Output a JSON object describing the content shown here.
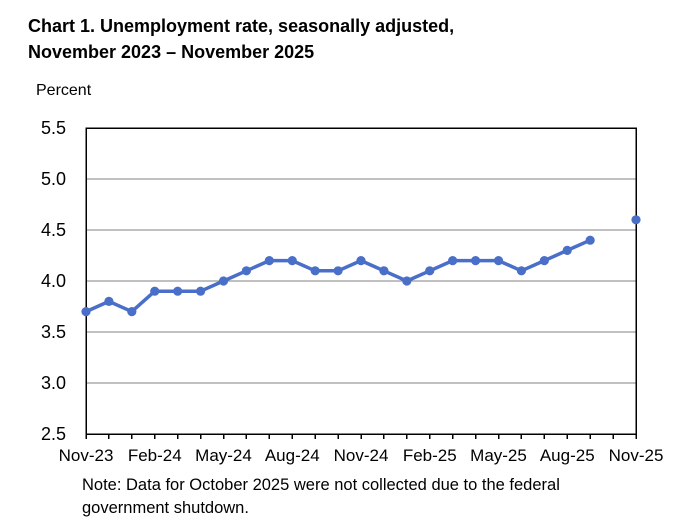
{
  "title": {
    "line1": "Chart 1. Unemployment rate, seasonally adjusted,",
    "line2": "November 2023 – November 2025"
  },
  "y_axis_unit": "Percent",
  "note": {
    "line1": "Note: Data for October 2025 were not collected due to the federal",
    "line2": "government shutdown."
  },
  "colors": {
    "line": "#4a6fc8",
    "marker": "#4a6fc8",
    "gridline": "#808080",
    "axis": "#000000",
    "background": "#ffffff"
  },
  "chart_data": {
    "type": "line",
    "title": "Chart 1. Unemployment rate, seasonally adjusted, November 2023 – November 2025",
    "xlabel": "",
    "ylabel": "Percent",
    "ylim": [
      2.5,
      5.5
    ],
    "yticks": [
      2.5,
      3.0,
      3.5,
      4.0,
      4.5,
      5.0,
      5.5
    ],
    "grid": true,
    "legend": false,
    "marker": "circle",
    "x": [
      "Nov-23",
      "Dec-23",
      "Jan-24",
      "Feb-24",
      "Mar-24",
      "Apr-24",
      "May-24",
      "Jun-24",
      "Jul-24",
      "Aug-24",
      "Sep-24",
      "Oct-24",
      "Nov-24",
      "Dec-24",
      "Jan-25",
      "Feb-25",
      "Mar-25",
      "Apr-25",
      "May-25",
      "Jun-25",
      "Jul-25",
      "Aug-25",
      "Sep-25",
      "Oct-25",
      "Nov-25"
    ],
    "series": [
      {
        "name": "Unemployment rate",
        "values": [
          3.7,
          3.8,
          3.7,
          3.9,
          3.9,
          3.9,
          4.0,
          4.1,
          4.2,
          4.2,
          4.1,
          4.1,
          4.2,
          4.1,
          4.0,
          4.1,
          4.2,
          4.2,
          4.2,
          4.1,
          4.2,
          4.3,
          4.4,
          null,
          4.6
        ]
      }
    ],
    "xtick_labels": [
      "Nov-23",
      "Feb-24",
      "May-24",
      "Aug-24",
      "Nov-24",
      "Feb-25",
      "May-25",
      "Aug-25",
      "Nov-25"
    ],
    "xtick_label_every": 3
  }
}
